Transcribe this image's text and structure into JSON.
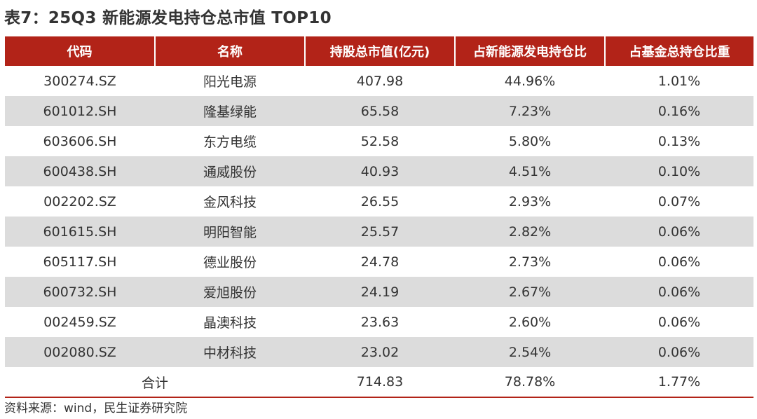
{
  "title": "表7：25Q3 新能源发电持仓总市值 TOP10",
  "table": {
    "headers": [
      "代码",
      "名称",
      "持股总市值(亿元)",
      "占新能源发电持仓比",
      "占基金总持仓比重"
    ],
    "rows": [
      {
        "code": "300274.SZ",
        "name": "阳光电源",
        "value": "407.98",
        "pct_sector": "44.96%",
        "pct_fund": "1.01%"
      },
      {
        "code": "601012.SH",
        "name": "隆基绿能",
        "value": "65.58",
        "pct_sector": "7.23%",
        "pct_fund": "0.16%"
      },
      {
        "code": "603606.SH",
        "name": "东方电缆",
        "value": "52.58",
        "pct_sector": "5.80%",
        "pct_fund": "0.13%"
      },
      {
        "code": "600438.SH",
        "name": "通威股份",
        "value": "40.93",
        "pct_sector": "4.51%",
        "pct_fund": "0.10%"
      },
      {
        "code": "002202.SZ",
        "name": "金风科技",
        "value": "26.55",
        "pct_sector": "2.93%",
        "pct_fund": "0.07%"
      },
      {
        "code": "601615.SH",
        "name": "明阳智能",
        "value": "25.57",
        "pct_sector": "2.82%",
        "pct_fund": "0.06%"
      },
      {
        "code": "605117.SH",
        "name": "德业股份",
        "value": "24.78",
        "pct_sector": "2.73%",
        "pct_fund": "0.06%"
      },
      {
        "code": "600732.SH",
        "name": "爱旭股份",
        "value": "24.19",
        "pct_sector": "2.67%",
        "pct_fund": "0.06%"
      },
      {
        "code": "002459.SZ",
        "name": "晶澳科技",
        "value": "23.63",
        "pct_sector": "2.60%",
        "pct_fund": "0.06%"
      },
      {
        "code": "002080.SZ",
        "name": "中材科技",
        "value": "23.02",
        "pct_sector": "2.54%",
        "pct_fund": "0.06%"
      }
    ],
    "total": {
      "label": "合计",
      "value": "714.83",
      "pct_sector": "78.78%",
      "pct_fund": "1.77%"
    }
  },
  "source": "资料来源：wind，民生证券研究院",
  "colors": {
    "header_bg": "#b22318",
    "stripe_bg": "#dcdcdc"
  }
}
